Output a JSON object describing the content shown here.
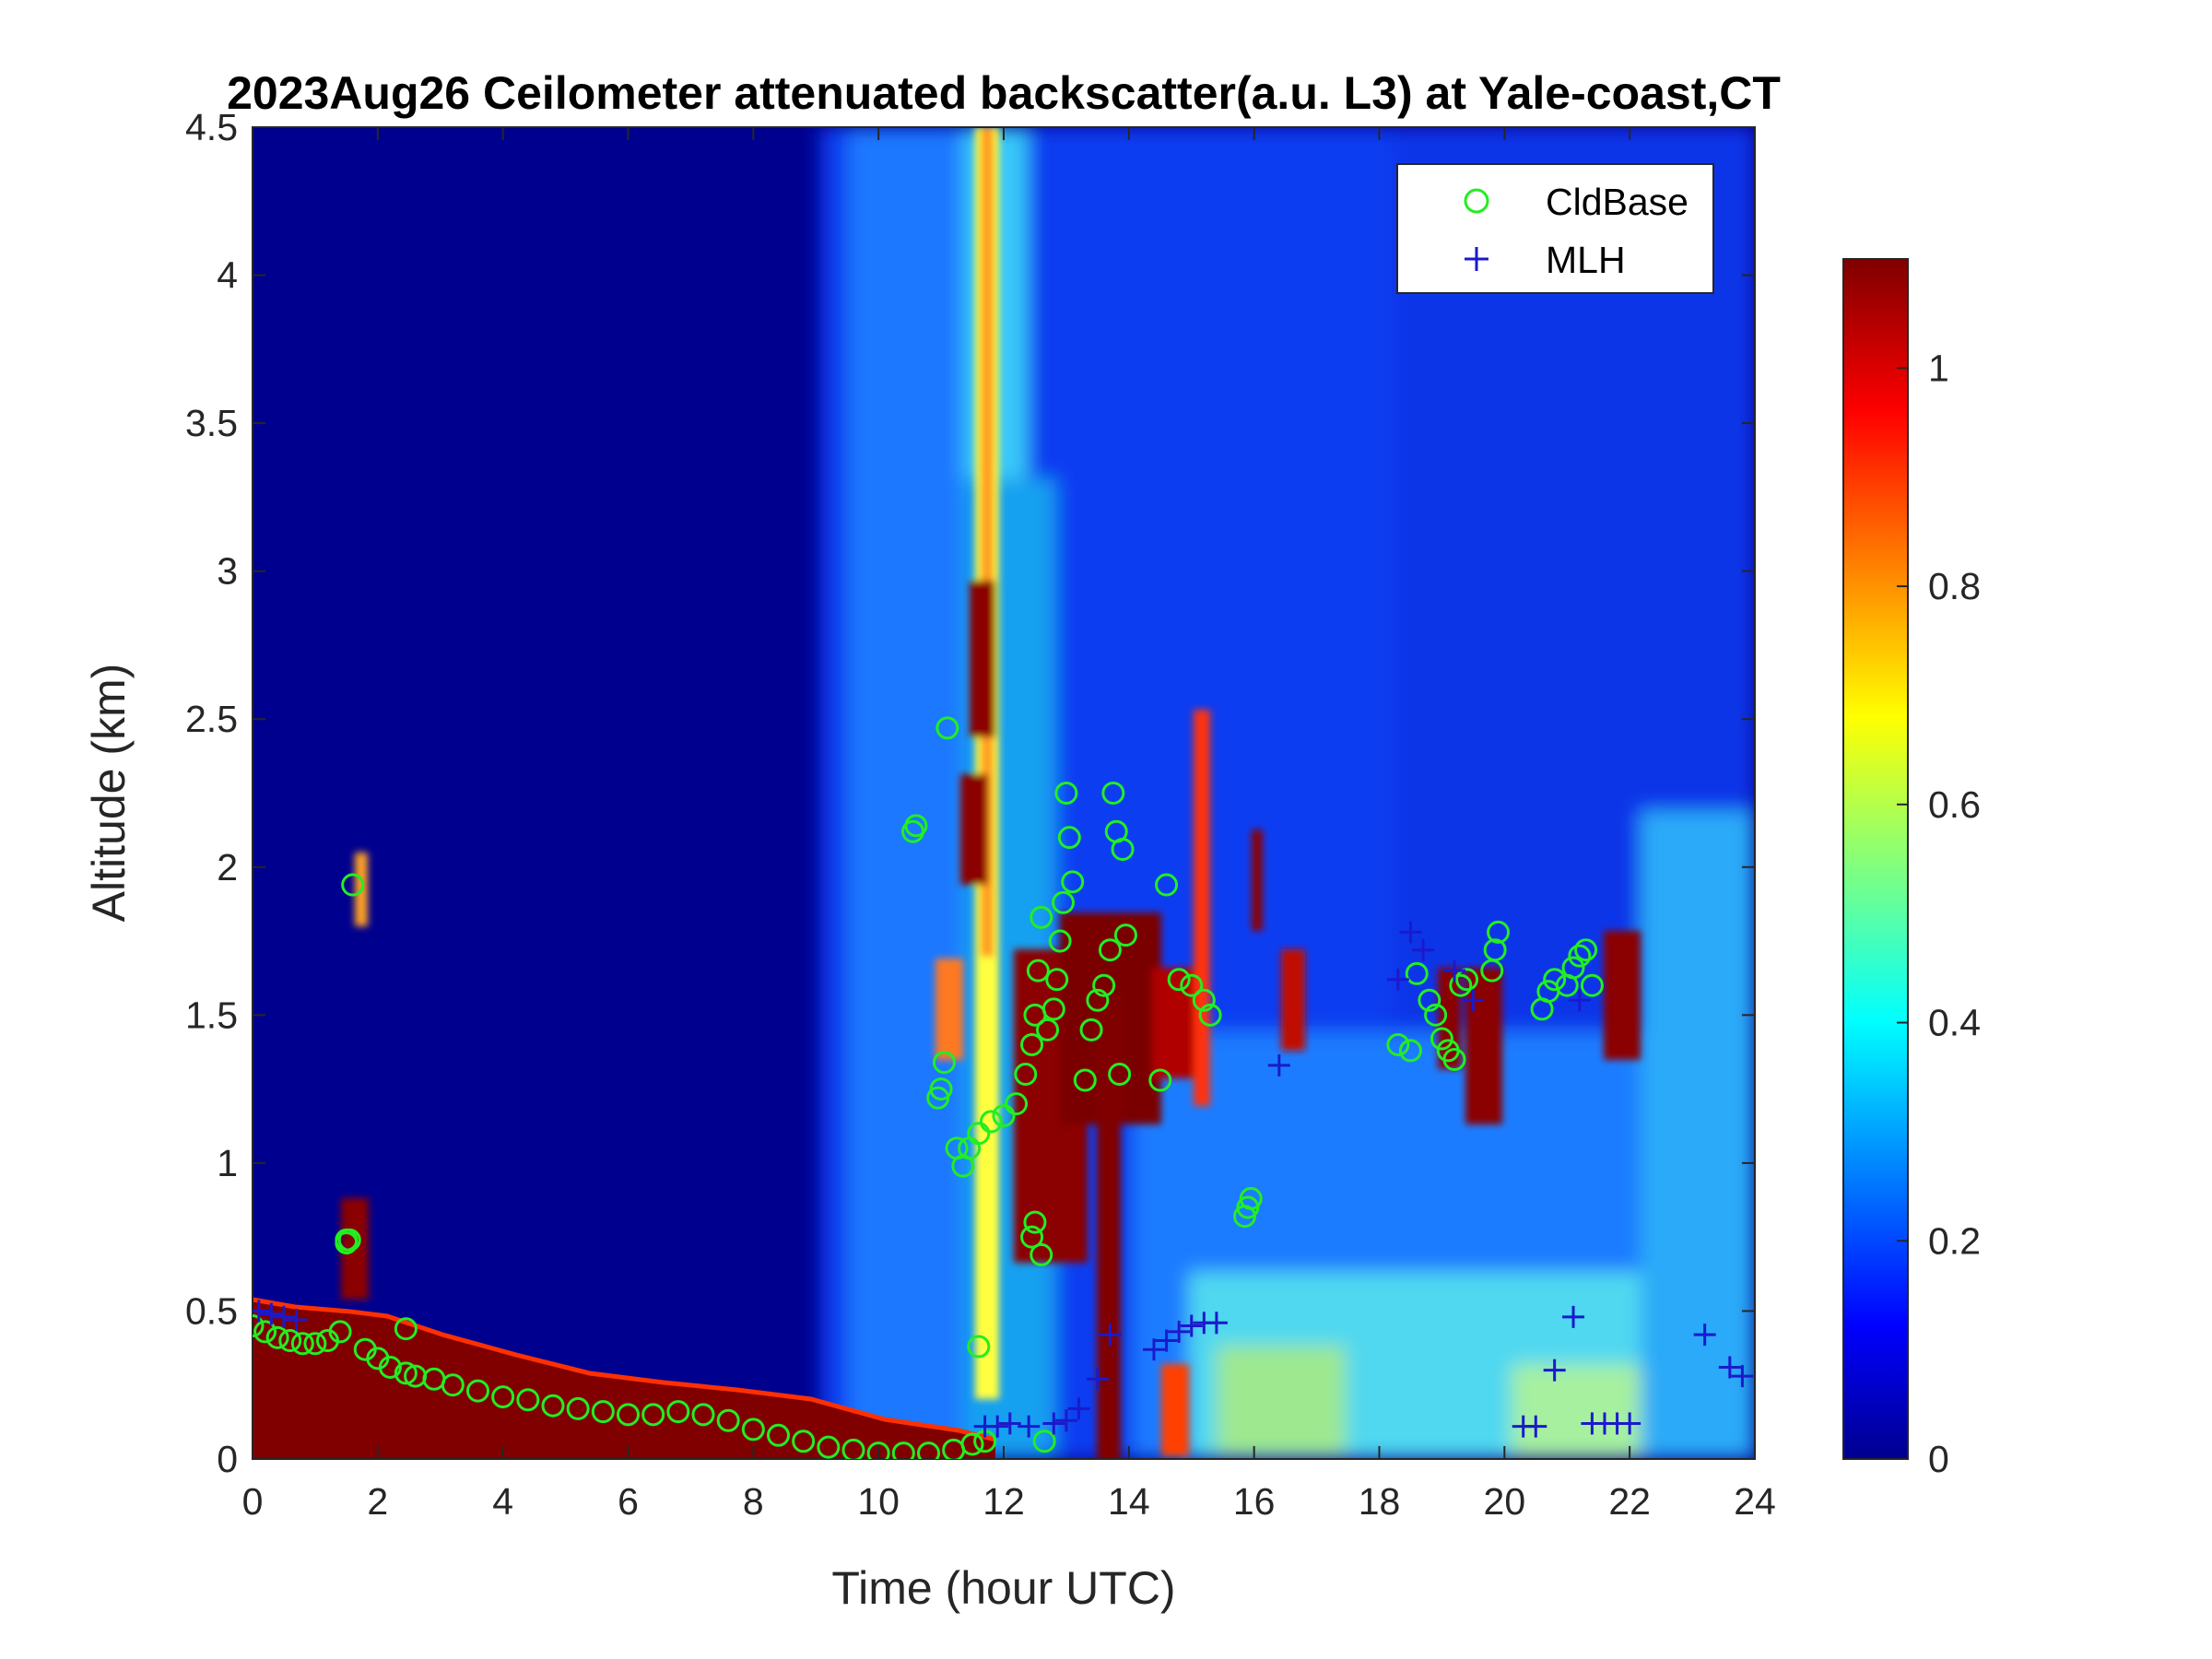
{
  "chart_data": {
    "type": "heatmap",
    "title": "2023Aug26 Ceilometer attenuated backscatter(a.u. L3) at Yale-coast,CT",
    "xlabel": "Time (hour UTC)",
    "ylabel": "Altitude (km)",
    "xlim": [
      0,
      24
    ],
    "ylim": [
      0,
      4.5
    ],
    "x_ticks": [
      "0",
      "2",
      "4",
      "6",
      "8",
      "10",
      "12",
      "14",
      "16",
      "18",
      "20",
      "22",
      "24"
    ],
    "y_ticks": [
      "0",
      "0.5",
      "1",
      "1.5",
      "2",
      "2.5",
      "3",
      "3.5",
      "4",
      "4.5"
    ],
    "colorbar": {
      "colormap": "jet",
      "range": [
        0,
        1.1
      ],
      "ticks": [
        "0",
        "0.2",
        "0.4",
        "0.6",
        "0.8",
        "1"
      ]
    },
    "legend": {
      "position": "top-right",
      "entries": [
        {
          "label": "CldBase",
          "marker": "circle",
          "color": "#22ee22"
        },
        {
          "label": "MLH",
          "marker": "plus",
          "color": "#1a1acc"
        }
      ]
    },
    "series": [
      {
        "name": "CldBase",
        "marker": "circle",
        "color": "#22ee22",
        "x": [
          0.0,
          0.2,
          0.4,
          0.6,
          0.8,
          1.0,
          1.2,
          1.4,
          1.5,
          1.55,
          1.6,
          1.8,
          2.0,
          2.2,
          2.45,
          2.6,
          2.9,
          3.2,
          3.6,
          4.0,
          4.4,
          4.8,
          5.2,
          5.6,
          6.0,
          6.4,
          6.8,
          7.2,
          7.6,
          8.0,
          8.4,
          8.8,
          9.2,
          9.6,
          10.0,
          10.4,
          10.8,
          11.2,
          11.5,
          11.7,
          10.55,
          10.6,
          10.95,
          11.0,
          11.05,
          11.1,
          11.25,
          11.35,
          11.45,
          11.6,
          11.8,
          12.0,
          12.2,
          12.35,
          12.45,
          12.5,
          12.55,
          12.6,
          12.7,
          12.8,
          12.85,
          12.9,
          12.95,
          13.0,
          13.05,
          13.1,
          13.3,
          13.4,
          13.5,
          13.6,
          13.7,
          13.75,
          13.8,
          13.85,
          13.9,
          13.95,
          14.5,
          14.6,
          14.8,
          15.0,
          15.2,
          15.3,
          15.85,
          15.9,
          15.95,
          12.45,
          12.5,
          12.6,
          12.65,
          11.6,
          2.45,
          1.5,
          18.3,
          18.5,
          18.6,
          18.8,
          18.9,
          19.0,
          19.1,
          19.2,
          19.3,
          19.4,
          19.8,
          19.85,
          19.9,
          20.6,
          20.7,
          20.8,
          21.0,
          21.1,
          21.2,
          21.3,
          21.4
        ],
        "y": [
          0.45,
          0.43,
          0.41,
          0.4,
          0.39,
          0.39,
          0.4,
          0.43,
          0.73,
          0.74,
          1.94,
          0.37,
          0.34,
          0.31,
          0.29,
          0.28,
          0.27,
          0.25,
          0.23,
          0.21,
          0.2,
          0.18,
          0.17,
          0.16,
          0.15,
          0.15,
          0.16,
          0.15,
          0.13,
          0.1,
          0.08,
          0.06,
          0.04,
          0.03,
          0.02,
          0.02,
          0.02,
          0.03,
          0.05,
          0.06,
          2.12,
          2.14,
          1.22,
          1.25,
          1.34,
          2.47,
          1.05,
          0.99,
          1.05,
          1.1,
          1.14,
          1.16,
          1.2,
          1.3,
          1.4,
          1.5,
          1.65,
          1.83,
          1.45,
          1.52,
          1.62,
          1.75,
          1.88,
          2.25,
          2.1,
          1.95,
          1.28,
          1.45,
          1.55,
          1.6,
          1.72,
          2.25,
          2.12,
          1.3,
          2.06,
          1.77,
          1.28,
          1.94,
          1.62,
          1.6,
          1.55,
          1.5,
          0.82,
          0.85,
          0.88,
          0.75,
          0.8,
          0.69,
          0.06,
          0.38,
          0.44,
          0.74,
          1.4,
          1.38,
          1.64,
          1.55,
          1.5,
          1.42,
          1.38,
          1.35,
          1.6,
          1.62,
          1.65,
          1.72,
          1.78,
          1.52,
          1.58,
          1.62,
          1.6,
          1.66,
          1.7,
          1.72,
          1.6
        ]
      },
      {
        "name": "MLH",
        "marker": "plus",
        "color": "#1a1acc",
        "x": [
          0.1,
          0.3,
          0.5,
          0.7,
          11.7,
          11.9,
          12.1,
          12.4,
          12.8,
          13.0,
          13.2,
          13.5,
          13.7,
          14.4,
          14.6,
          14.8,
          15.0,
          15.2,
          15.4,
          16.4,
          18.3,
          18.5,
          18.7,
          19.2,
          19.5,
          20.3,
          20.5,
          20.8,
          21.1,
          21.2,
          21.4,
          21.6,
          21.8,
          22.0,
          23.2,
          23.6,
          23.8
        ],
        "y": [
          0.5,
          0.49,
          0.48,
          0.47,
          0.11,
          0.11,
          0.12,
          0.11,
          0.12,
          0.13,
          0.17,
          0.27,
          0.42,
          0.37,
          0.4,
          0.43,
          0.45,
          0.46,
          0.46,
          1.33,
          1.62,
          1.78,
          1.72,
          1.65,
          1.55,
          0.11,
          0.11,
          0.3,
          0.48,
          1.55,
          0.12,
          0.12,
          0.12,
          0.12,
          0.42,
          0.31,
          0.28
        ]
      }
    ]
  }
}
